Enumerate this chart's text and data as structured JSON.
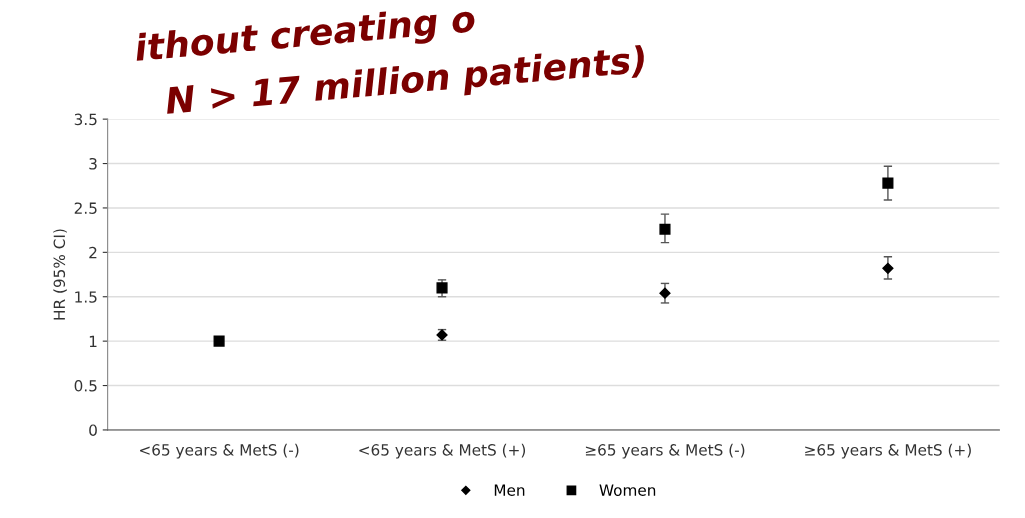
{
  "chart_data": {
    "type": "scatter",
    "ylabel": "HR (95% CI)",
    "categories": [
      "<65 years & MetS (-)",
      "<65 years & MetS (+)",
      "≥65 years & MetS (-)",
      "≥65 years & MetS (+)"
    ],
    "series": [
      {
        "name": "Men",
        "color": "#000000",
        "marker": "diamond",
        "values": [
          null,
          1.07,
          1.54,
          1.82
        ],
        "errors": [
          null,
          [
            1.01,
            1.13
          ],
          [
            1.43,
            1.65
          ],
          [
            1.7,
            1.95
          ]
        ]
      },
      {
        "name": "Women",
        "color": "#000000",
        "marker": "square",
        "values": [
          1,
          1.6,
          2.26,
          2.78
        ],
        "errors": [
          null,
          [
            1.5,
            1.69
          ],
          [
            2.11,
            2.43
          ],
          [
            2.59,
            2.97
          ]
        ]
      }
    ],
    "ylim": [
      0,
      3.5
    ],
    "yticks": [
      0,
      0.5,
      1,
      1.5,
      2,
      2.5,
      3,
      3.5
    ],
    "grid": "y",
    "legend": "bottom",
    "annotations": [
      "ithout creating o",
      "N > 17 million patients)"
    ]
  }
}
